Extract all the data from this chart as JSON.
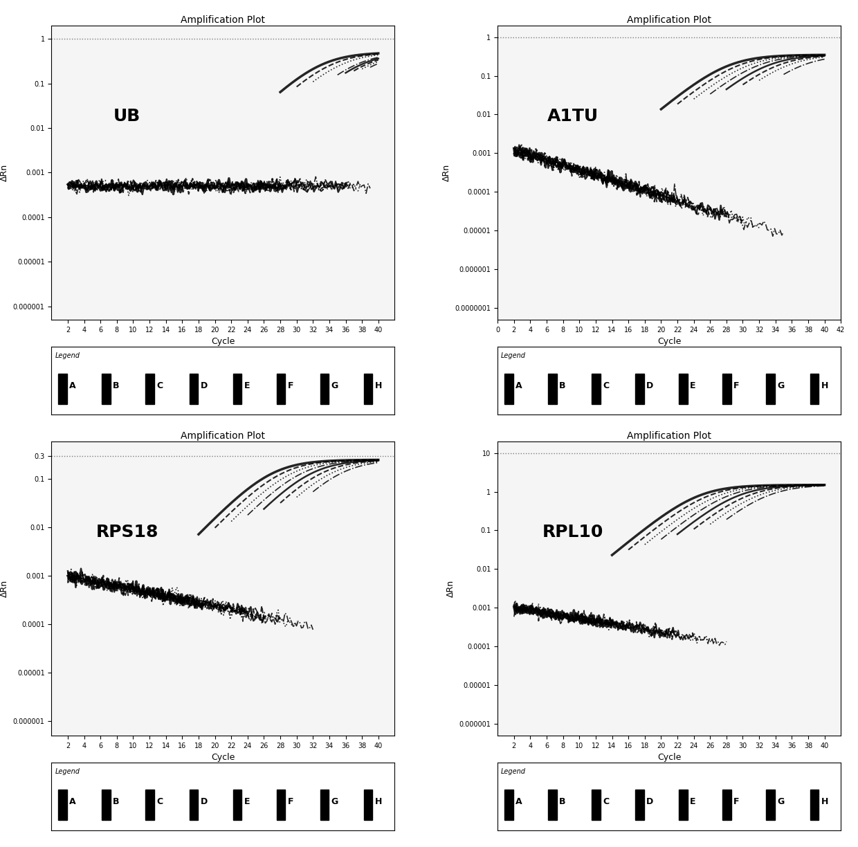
{
  "panels": [
    {
      "label": "UB",
      "title": "Amplification Plot",
      "xlabel": "Cycle",
      "ylabel": "ΔRn",
      "ylim_log": [
        -6.301,
        0.301
      ],
      "xlim": [
        0,
        42
      ],
      "yticks": [
        1e-06,
        1e-05,
        0.0001,
        0.001,
        0.01,
        0.1,
        1
      ],
      "ytick_labels": [
        "0.000001",
        "0.00001",
        "0.0001",
        "0.001",
        "0.01",
        "0.1",
        "1"
      ],
      "xticks": [
        2,
        4,
        6,
        8,
        10,
        12,
        14,
        16,
        18,
        20,
        22,
        24,
        26,
        28,
        30,
        32,
        34,
        36,
        38,
        40
      ],
      "n_curves": 8,
      "baseline_start": 2,
      "baseline_end": 16,
      "baseline_level": 0.0005,
      "amplification_starts": [
        28,
        30,
        32,
        35,
        36,
        37,
        38,
        39
      ],
      "plateau": 0.5
    },
    {
      "label": "A1TU",
      "title": "Amplification Plot",
      "xlabel": "Cycle",
      "ylabel": "ΔRn",
      "ylim_log": [
        -7,
        0.301
      ],
      "xlim": [
        0,
        42
      ],
      "yticks": [
        1e-07,
        1e-06,
        1e-05,
        0.0001,
        0.001,
        0.01,
        0.1,
        1
      ],
      "ytick_labels": [
        "0.0000001",
        "0.000001",
        "0.00001",
        "0.0001",
        "0.001",
        "0.01",
        "0.1",
        "1"
      ],
      "xticks": [
        0,
        2,
        4,
        6,
        8,
        10,
        12,
        14,
        16,
        18,
        20,
        22,
        24,
        26,
        28,
        30,
        32,
        34,
        36,
        38,
        40,
        42
      ],
      "n_curves": 8,
      "baseline_level": 0.0012,
      "amplification_starts": [
        20,
        22,
        24,
        26,
        28,
        30,
        32,
        35
      ],
      "plateau": 0.35
    },
    {
      "label": "RPS18",
      "title": "Amplification Plot",
      "xlabel": "Cycle",
      "ylabel": "ΔRn",
      "ylim_log": [
        -6.301,
        -0.301
      ],
      "xlim": [
        0,
        42
      ],
      "yticks": [
        1e-06,
        1e-05,
        0.0001,
        0.001,
        0.01,
        0.1,
        0.3
      ],
      "ytick_labels": [
        "0.000001",
        "0.00001",
        "0.0001",
        "0.001",
        "0.01",
        "0.1",
        "0.3"
      ],
      "xticks": [
        2,
        4,
        6,
        8,
        10,
        12,
        14,
        16,
        18,
        20,
        22,
        24,
        26,
        28,
        30,
        32,
        34,
        36,
        38,
        40
      ],
      "n_curves": 8,
      "baseline_level": 0.001,
      "amplification_starts": [
        18,
        20,
        22,
        24,
        26,
        28,
        30,
        32
      ],
      "plateau": 0.25
    },
    {
      "label": "RPL10",
      "title": "Amplification Plot",
      "xlabel": "Cycle",
      "ylabel": "ΔRn",
      "ylim_log": [
        -6.301,
        1.301
      ],
      "xlim": [
        0,
        42
      ],
      "yticks": [
        1e-06,
        1e-05,
        0.0001,
        0.001,
        0.01,
        0.1,
        1,
        10
      ],
      "ytick_labels": [
        "0.000001",
        "0.00001",
        "0.0001",
        "0.001",
        "0.01",
        "0.1",
        "1",
        "10"
      ],
      "xticks": [
        2,
        4,
        6,
        8,
        10,
        12,
        14,
        16,
        18,
        20,
        22,
        24,
        26,
        28,
        30,
        32,
        34,
        36,
        38,
        40
      ],
      "n_curves": 8,
      "baseline_level": 0.001,
      "amplification_starts": [
        14,
        16,
        18,
        20,
        22,
        24,
        26,
        28
      ],
      "plateau": 1.5
    }
  ],
  "legend_labels": [
    "A",
    "B",
    "C",
    "D",
    "E",
    "F",
    "G",
    "H"
  ],
  "line_styles": [
    "solid",
    "dashed",
    "dotted",
    "dashdot",
    "solid",
    "dashed",
    "dotted",
    "dashdot"
  ],
  "line_widths": [
    2.5,
    1.5,
    1.5,
    1.5,
    1.5,
    1.5,
    1.5,
    1.5
  ],
  "bg_color": "#ffffff",
  "plot_bg_color": "#f5f5f5",
  "label_fontsize": 18,
  "title_fontsize": 10
}
